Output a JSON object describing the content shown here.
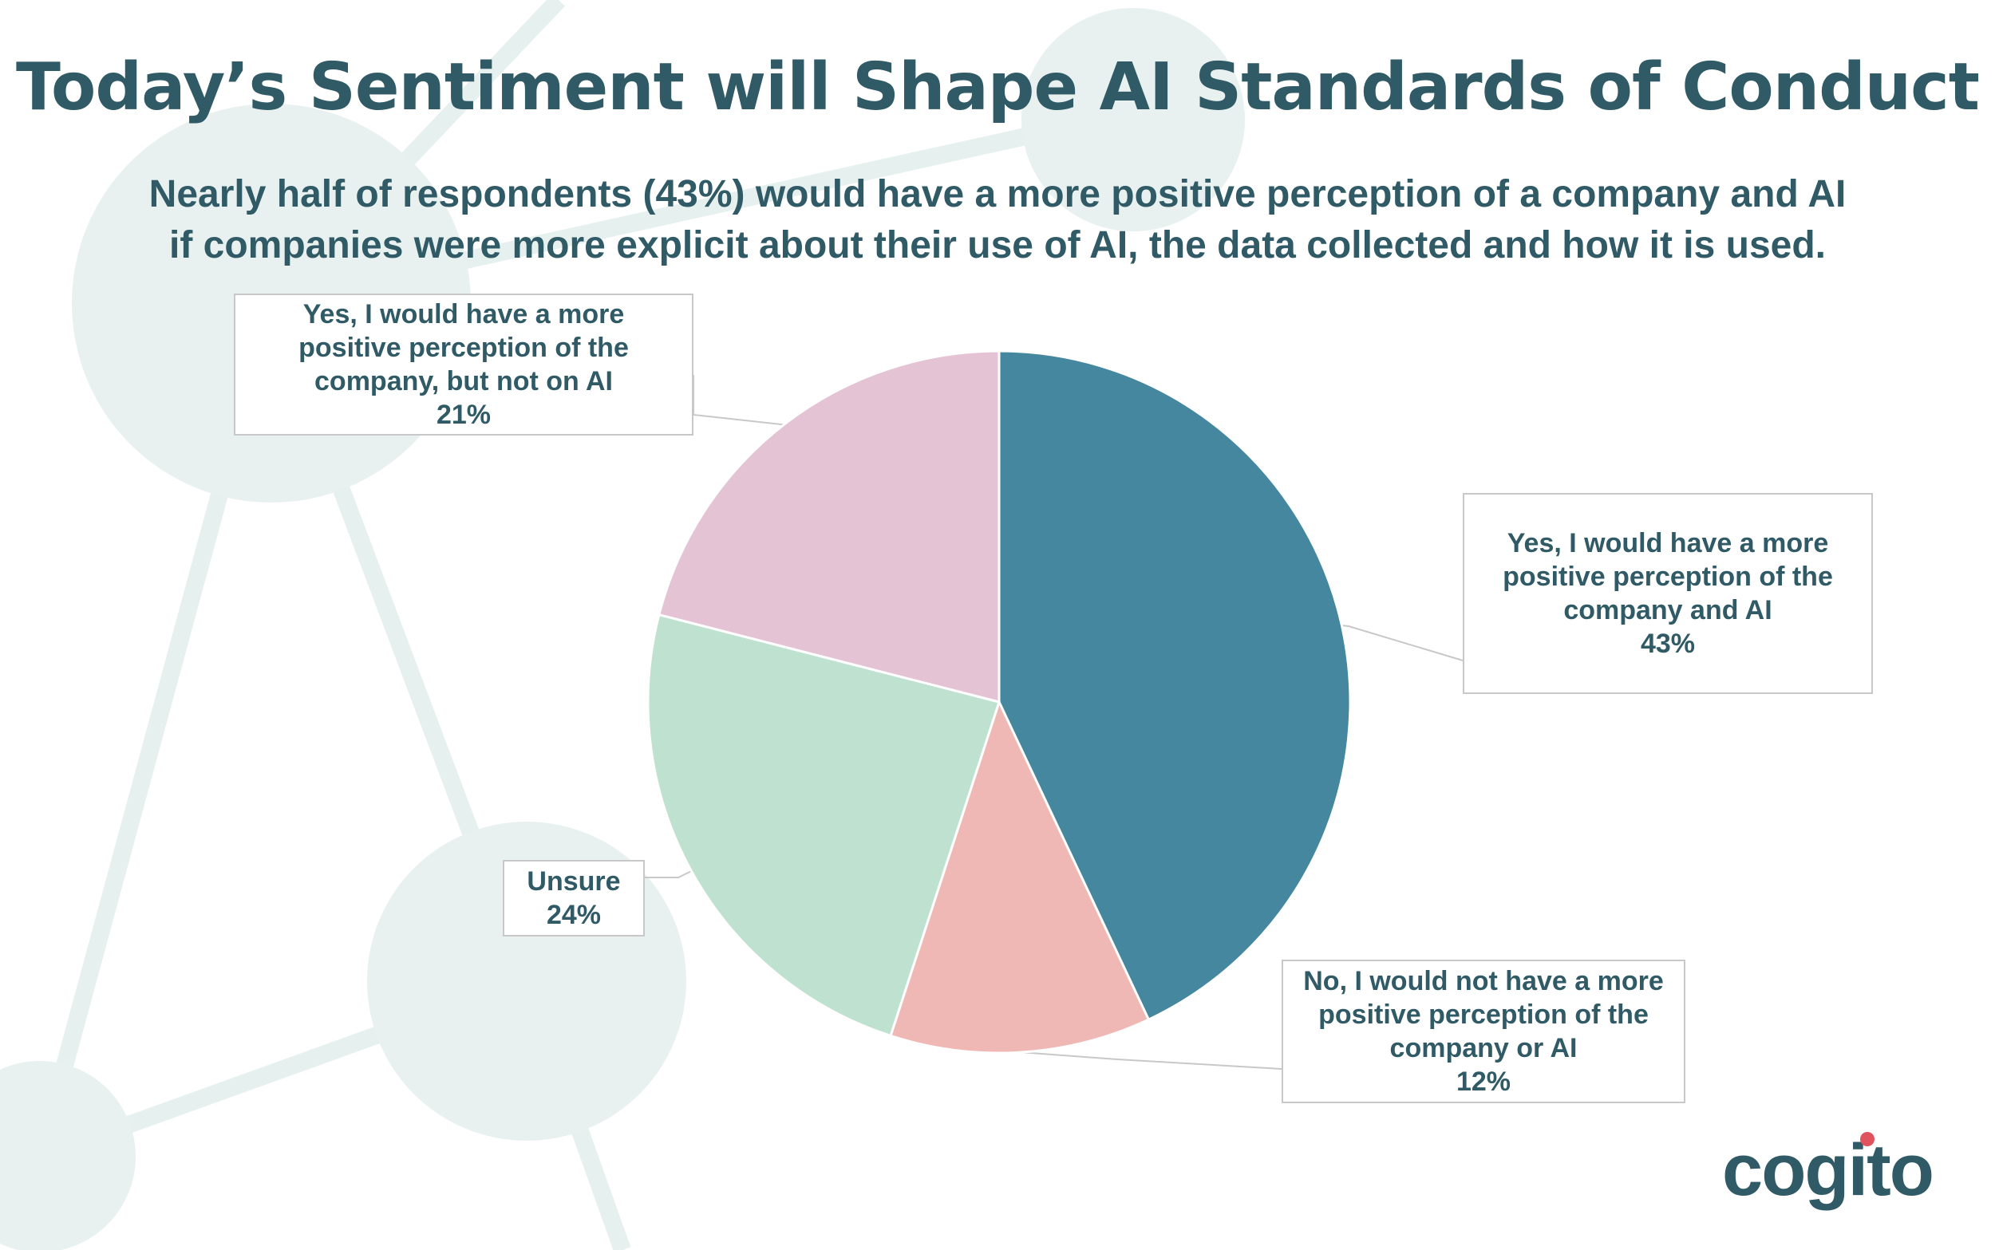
{
  "header": {
    "title": "Today’s Sentiment will Shape AI Standards of Conduct",
    "subtitle_line1": "Nearly half of respondents (43%) would have a more positive perception of a company and AI",
    "subtitle_line2": "if companies were more explicit about their use of AI, the data collected and how it is used."
  },
  "chart_data": {
    "type": "pie",
    "title": "Today’s Sentiment will Shape AI Standards of Conduct",
    "slices": [
      {
        "label_lines": [
          "Yes, I would have a more",
          "positive perception of the",
          "company and AI"
        ],
        "value": 43,
        "display": "43%",
        "color": "#45879e"
      },
      {
        "label_lines": [
          "No, I would not have a more",
          "positive perception of the",
          "company or AI"
        ],
        "value": 12,
        "display": "12%",
        "color": "#efb8b5"
      },
      {
        "label_lines": [
          "Unsure"
        ],
        "value": 24,
        "display": "24%",
        "color": "#bfe1cf"
      },
      {
        "label_lines": [
          "Yes, I would have a more",
          "positive perception of the",
          "company, but not on AI"
        ],
        "value": 21,
        "display": "21%",
        "color": "#e4c4d4"
      }
    ]
  },
  "brand": {
    "logo_text": "cogito",
    "accent_color": "#e0525e",
    "primary_color": "#2f5a66"
  }
}
